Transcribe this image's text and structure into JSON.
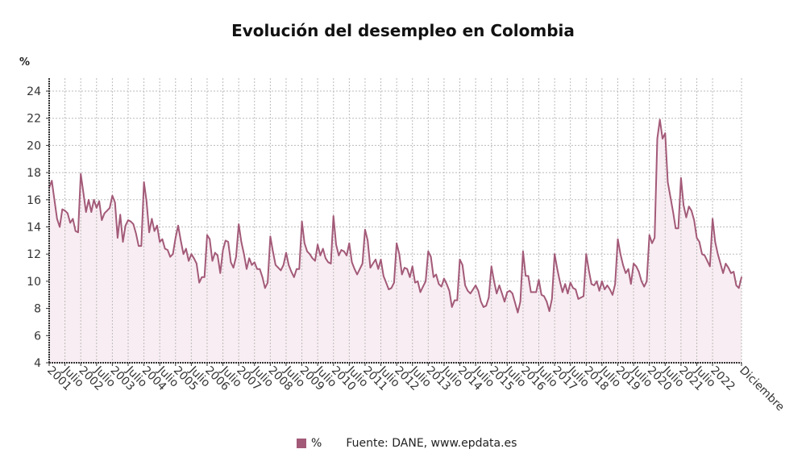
{
  "title": "Evolución del desempleo en Colombia",
  "unit_label": "%",
  "legend": {
    "series_label": "%",
    "source": "Fuente: DANE, www.epdata.es"
  },
  "colors": {
    "line": "#a35a78",
    "fill": "#f8edf2",
    "grid": "#bbbbbb",
    "axis": "#333333"
  },
  "chart_data": {
    "type": "area",
    "frequency": "monthly",
    "start": "2001-01",
    "end": "2022-12",
    "ylim": [
      4,
      24
    ],
    "yticks": [
      4,
      6,
      8,
      10,
      12,
      14,
      16,
      18,
      20,
      22,
      24
    ],
    "grid": true,
    "xtick_labels": [
      "2001",
      "Julio",
      "2002",
      "Julio",
      "2003",
      "Julio",
      "2004",
      "Julio",
      "2005",
      "Julio",
      "2006",
      "Julio",
      "2007",
      "Julio",
      "2008",
      "Julio",
      "2009",
      "Julio",
      "2010",
      "Julio",
      "2011",
      "Julio",
      "2012",
      "Julio",
      "2013",
      "Julio",
      "2014",
      "Julio",
      "2015",
      "Julio",
      "2016",
      "Julio",
      "2017",
      "Julio",
      "2018",
      "Julio",
      "2019",
      "Julio",
      "2020",
      "Julio",
      "2021",
      "Julio",
      "2022",
      "Diciembre"
    ],
    "series": [
      {
        "name": "%",
        "values": [
          16.9,
          17.4,
          16.0,
          14.6,
          14.0,
          15.3,
          15.2,
          15.0,
          14.3,
          14.6,
          13.7,
          13.6,
          17.9,
          16.5,
          15.1,
          16.0,
          15.1,
          16.0,
          15.4,
          15.9,
          14.5,
          15.0,
          15.2,
          15.4,
          16.3,
          15.8,
          13.2,
          14.9,
          12.9,
          14.1,
          14.5,
          14.4,
          14.2,
          13.5,
          12.6,
          12.6,
          17.3,
          15.9,
          13.6,
          14.6,
          13.7,
          14.1,
          12.9,
          13.1,
          12.4,
          12.3,
          11.8,
          12.0,
          13.2,
          14.1,
          13.0,
          12.0,
          12.4,
          11.5,
          12.0,
          11.7,
          11.3,
          9.9,
          10.3,
          10.3,
          13.4,
          13.1,
          11.5,
          12.1,
          11.9,
          10.6,
          12.3,
          13.0,
          12.9,
          11.4,
          11.0,
          11.8,
          14.2,
          12.9,
          12.0,
          10.9,
          11.7,
          11.2,
          11.4,
          10.9,
          10.9,
          10.3,
          9.5,
          9.9,
          13.3,
          12.2,
          11.2,
          11.0,
          10.8,
          11.2,
          12.1,
          11.2,
          10.7,
          10.3,
          10.9,
          10.9,
          14.4,
          12.8,
          12.2,
          12.0,
          11.7,
          11.5,
          12.7,
          11.9,
          12.4,
          11.7,
          11.4,
          11.3,
          14.8,
          12.7,
          11.9,
          12.3,
          12.2,
          11.9,
          12.8,
          11.4,
          10.9,
          10.5,
          10.9,
          11.3,
          13.8,
          13.0,
          11.0,
          11.3,
          11.6,
          10.9,
          11.6,
          10.4,
          9.9,
          9.4,
          9.5,
          9.9,
          12.8,
          12.0,
          10.5,
          11.0,
          10.9,
          10.3,
          11.1,
          9.9,
          10.0,
          9.2,
          9.6,
          10.0,
          12.2,
          11.8,
          10.3,
          10.5,
          9.8,
          9.6,
          10.2,
          9.8,
          9.3,
          8.1,
          8.6,
          8.6,
          11.6,
          11.2,
          9.7,
          9.3,
          9.1,
          9.4,
          9.7,
          9.3,
          8.5,
          8.1,
          8.2,
          8.8,
          11.1,
          10.0,
          9.1,
          9.7,
          9.1,
          8.5,
          9.2,
          9.3,
          9.1,
          8.4,
          7.7,
          8.5,
          12.2,
          10.4,
          10.4,
          9.2,
          9.2,
          9.2,
          10.1,
          9.0,
          8.9,
          8.5,
          7.8,
          8.7,
          12.0,
          10.9,
          10.0,
          9.2,
          9.8,
          9.1,
          9.9,
          9.5,
          9.4,
          8.7,
          8.8,
          8.9,
          12.0,
          10.8,
          9.8,
          9.7,
          10.0,
          9.3,
          10.0,
          9.4,
          9.7,
          9.4,
          9.0,
          9.8,
          13.1,
          12.0,
          11.2,
          10.6,
          10.9,
          9.8,
          11.3,
          11.1,
          10.7,
          10.0,
          9.6,
          10.0,
          13.4,
          12.8,
          13.2,
          20.5,
          21.9,
          20.5,
          20.9,
          17.3,
          16.2,
          15.1,
          13.9,
          13.9,
          17.6,
          15.6,
          14.7,
          15.5,
          15.2,
          14.5,
          13.2,
          12.9,
          12.0,
          11.9,
          11.5,
          11.1,
          14.6,
          12.9,
          12.0,
          11.3,
          10.6,
          11.3,
          11.0,
          10.6,
          10.7,
          9.7,
          9.5,
          10.3
        ]
      }
    ]
  }
}
